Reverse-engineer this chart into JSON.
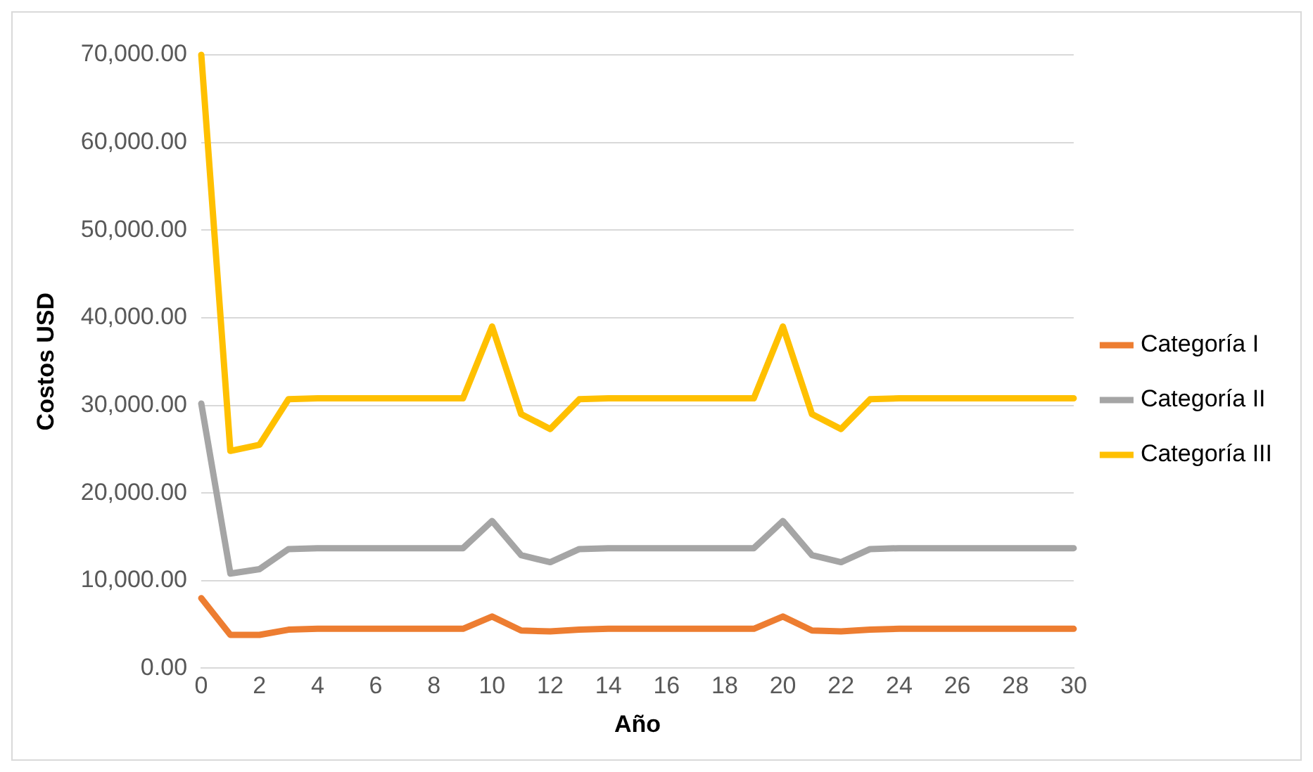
{
  "chart_data": {
    "type": "line",
    "xlabel": "Año",
    "ylabel": "Costos USD",
    "x": [
      0,
      1,
      2,
      3,
      4,
      5,
      6,
      7,
      8,
      9,
      10,
      11,
      12,
      13,
      14,
      15,
      16,
      17,
      18,
      19,
      20,
      21,
      22,
      23,
      24,
      25,
      26,
      27,
      28,
      29,
      30
    ],
    "series": [
      {
        "name": "Categoría I",
        "color": "#ed7d31",
        "values": [
          8000,
          3800,
          3800,
          4400,
          4500,
          4500,
          4500,
          4500,
          4500,
          4500,
          5900,
          4300,
          4200,
          4400,
          4500,
          4500,
          4500,
          4500,
          4500,
          4500,
          5900,
          4300,
          4200,
          4400,
          4500,
          4500,
          4500,
          4500,
          4500,
          4500,
          4500
        ]
      },
      {
        "name": "Categoría II",
        "color": "#a5a5a5",
        "values": [
          30200,
          10800,
          11300,
          13600,
          13700,
          13700,
          13700,
          13700,
          13700,
          13700,
          16800,
          12900,
          12100,
          13600,
          13700,
          13700,
          13700,
          13700,
          13700,
          13700,
          16800,
          12900,
          12100,
          13600,
          13700,
          13700,
          13700,
          13700,
          13700,
          13700,
          13700
        ]
      },
      {
        "name": "Categoría III",
        "color": "#ffc000",
        "values": [
          70000,
          24800,
          25500,
          30700,
          30800,
          30800,
          30800,
          30800,
          30800,
          30800,
          39000,
          29000,
          27300,
          30700,
          30800,
          30800,
          30800,
          30800,
          30800,
          30800,
          39000,
          29000,
          27300,
          30700,
          30800,
          30800,
          30800,
          30800,
          30800,
          30800,
          30800
        ]
      }
    ],
    "xlim": [
      0,
      30
    ],
    "xticks": [
      0,
      2,
      4,
      6,
      8,
      10,
      12,
      14,
      16,
      18,
      20,
      22,
      24,
      26,
      28,
      30
    ],
    "ylim": [
      0,
      70000
    ],
    "yticks": [
      {
        "value": 0,
        "label": "0.00"
      },
      {
        "value": 10000,
        "label": "10,000.00"
      },
      {
        "value": 20000,
        "label": "20,000.00"
      },
      {
        "value": 30000,
        "label": "30,000.00"
      },
      {
        "value": 40000,
        "label": "40,000.00"
      },
      {
        "value": 50000,
        "label": "50,000.00"
      },
      {
        "value": 60000,
        "label": "60,000.00"
      },
      {
        "value": 70000,
        "label": "70,000.00"
      }
    ],
    "grid": "y",
    "legend": "right",
    "marker": "none",
    "line_style": "solid"
  }
}
